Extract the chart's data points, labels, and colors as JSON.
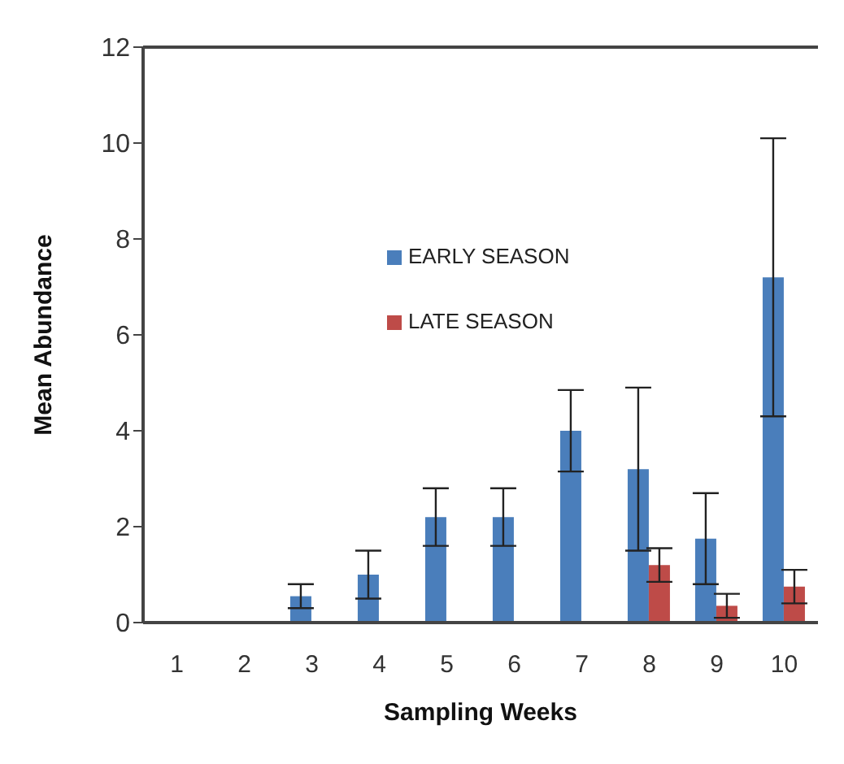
{
  "chart_data": {
    "type": "bar",
    "xlabel": "Sampling Weeks",
    "ylabel": "Mean Abundance",
    "categories": [
      "1",
      "2",
      "3",
      "4",
      "5",
      "6",
      "7",
      "8",
      "9",
      "10"
    ],
    "series": [
      {
        "name": "EARLY SEASON",
        "color": "#4a7ebb",
        "values": [
          0,
          0,
          0.55,
          1.0,
          2.2,
          2.2,
          4.0,
          3.2,
          1.75,
          7.2
        ],
        "errors": [
          null,
          null,
          0.25,
          0.5,
          0.6,
          0.6,
          0.85,
          1.7,
          0.95,
          2.9
        ]
      },
      {
        "name": "LATE SEASON",
        "color": "#be4b48",
        "values": [
          0,
          0,
          0,
          0,
          0,
          0,
          0,
          1.2,
          0.35,
          0.75
        ],
        "errors": [
          null,
          null,
          null,
          null,
          null,
          null,
          null,
          0.35,
          0.25,
          0.35
        ]
      }
    ],
    "ylim": [
      0,
      12
    ],
    "yticks": [
      0,
      2,
      4,
      6,
      8,
      10,
      12
    ],
    "grid": false,
    "legend": "top"
  }
}
